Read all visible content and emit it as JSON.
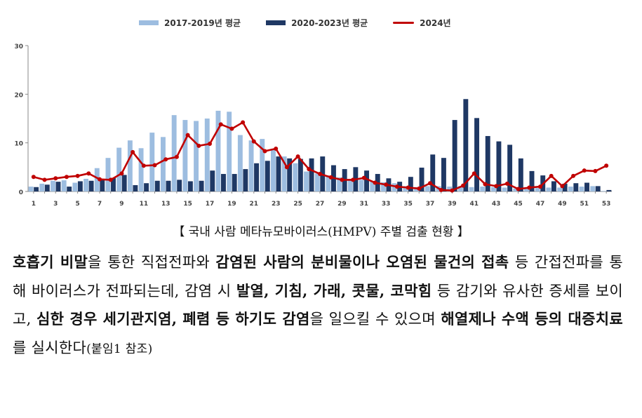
{
  "chart_data": {
    "type": "bar",
    "x": [
      1,
      2,
      3,
      4,
      5,
      6,
      7,
      8,
      9,
      10,
      11,
      12,
      13,
      14,
      15,
      16,
      17,
      18,
      19,
      20,
      21,
      22,
      23,
      24,
      25,
      26,
      27,
      28,
      29,
      30,
      31,
      32,
      33,
      34,
      35,
      36,
      37,
      38,
      39,
      40,
      41,
      42,
      43,
      44,
      45,
      46,
      47,
      48,
      49,
      50,
      51,
      52,
      53
    ],
    "x_ticks": [
      1,
      3,
      5,
      7,
      9,
      11,
      13,
      15,
      17,
      19,
      21,
      23,
      25,
      27,
      29,
      31,
      33,
      35,
      37,
      39,
      41,
      43,
      45,
      47,
      49,
      51,
      53
    ],
    "y_ticks": [
      0,
      10,
      20,
      30
    ],
    "ylim": [
      0,
      30
    ],
    "grid": false,
    "legend_position": "top",
    "series": [
      {
        "name": "2017-2019년 평균",
        "kind": "bar",
        "color": "#9dbde0",
        "values": [
          1,
          1.6,
          2.2,
          2.3,
          1.8,
          2.6,
          4.8,
          6.9,
          9,
          10.5,
          8.9,
          12.1,
          11.2,
          15.7,
          14.7,
          14.5,
          15,
          16.6,
          16.4,
          11.6,
          10.5,
          10.8,
          8.8,
          7.2,
          5.8,
          4.1,
          3.7,
          3.3,
          2.9,
          2.6,
          2.4,
          2.1,
          1.9,
          1.7,
          1.1,
          0.9,
          1.1,
          1.1,
          1,
          1.1,
          0.9,
          1,
          0.9,
          0.8,
          0.6,
          0.6,
          0.7,
          0.8,
          0.8,
          1,
          1,
          1.1,
          0.1
        ]
      },
      {
        "name": "2020-2023년 평균",
        "kind": "bar",
        "color": "#1f3864",
        "values": [
          0.9,
          1.4,
          2,
          1,
          2.1,
          2.2,
          2.6,
          2.8,
          3.4,
          1.3,
          1.7,
          2.2,
          2.2,
          2.4,
          2.1,
          2.2,
          4.3,
          3.6,
          3.6,
          4.6,
          5.8,
          6.3,
          7.2,
          6.8,
          6.7,
          6.8,
          7.2,
          5.4,
          4.6,
          5,
          4.3,
          3.6,
          2.7,
          2,
          3,
          4.9,
          7.6,
          6.9,
          14.7,
          19,
          15.1,
          11.4,
          10.3,
          9.6,
          6.8,
          4.2,
          3.3,
          2.1,
          1.6,
          1.7,
          1.8,
          1.1,
          0.3
        ]
      },
      {
        "name": "2024년",
        "kind": "line",
        "color": "#c00000",
        "values": [
          3,
          2.4,
          2.7,
          3,
          3.2,
          3.7,
          2.5,
          2.4,
          3.7,
          8.1,
          5.3,
          5.4,
          6.6,
          7.1,
          11.6,
          9.4,
          9.8,
          13.8,
          12.9,
          14.2,
          10.3,
          8.3,
          8.8,
          5,
          7.2,
          4.6,
          3.6,
          2.9,
          2.4,
          2.4,
          2.8,
          1.8,
          1.4,
          1,
          0.8,
          0.6,
          1.7,
          0.3,
          0.2,
          1.2,
          3.7,
          1.5,
          1.1,
          1.6,
          0.5,
          0.8,
          1,
          3.2,
          1.1,
          3.2,
          4.3,
          4.2,
          5.3
        ]
      }
    ]
  },
  "caption": "【 국내 사람 메타뉴모바이러스(HMPV) 주별 검출 현황 】",
  "paragraph": {
    "s1": "호흡기 비말",
    "s2": "을 통한 직접전파와 ",
    "s3": "감염된 사람의 분비물이나 오염된 물건의 접촉",
    "s4": " 등 간접전파를 통해 바이러스가 전파되는데, 감염 시 ",
    "s5": "발열, 기침, 가래, 콧물, 코막힘",
    "s6": " 등 감기와 유사한 증세를 보이고, ",
    "s7": "심한 경우 세기관지염, 폐렴 등 하기도 감염",
    "s8": "을 일으킬 수 있으며 ",
    "s9": "해열제나 수액 등의 대증치료",
    "s10": "를 실시한다",
    "s11": "(붙임1 참조)"
  }
}
